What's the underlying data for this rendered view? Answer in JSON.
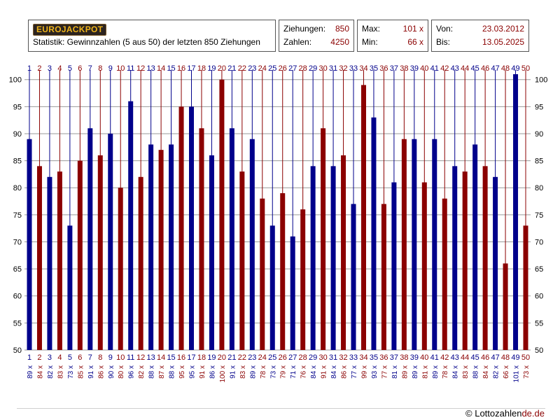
{
  "header": {
    "logo_text": "EUROJACKPOT",
    "subtitle": "Statistik: Gewinnzahlen (5 aus 50) der letzten 850 Ziehungen"
  },
  "stats": {
    "draws_label": "Ziehungen:",
    "draws_value": "850",
    "numbers_label": "Zahlen:",
    "numbers_value": "4250",
    "max_label": "Max:",
    "max_value": "101 x",
    "min_label": "Min:",
    "min_value": "66 x",
    "from_label": "Von:",
    "from_value": "23.03.2012",
    "to_label": "Bis:",
    "to_value": "13.05.2025"
  },
  "chart_data": {
    "type": "bar",
    "categories": [
      "1",
      "2",
      "3",
      "4",
      "5",
      "6",
      "7",
      "8",
      "9",
      "10",
      "11",
      "12",
      "13",
      "14",
      "15",
      "16",
      "17",
      "18",
      "19",
      "20",
      "21",
      "22",
      "23",
      "24",
      "25",
      "26",
      "27",
      "28",
      "29",
      "30",
      "31",
      "32",
      "33",
      "34",
      "35",
      "36",
      "37",
      "38",
      "39",
      "40",
      "41",
      "42",
      "43",
      "44",
      "45",
      "46",
      "47",
      "48",
      "49",
      "50"
    ],
    "values": [
      89,
      84,
      82,
      83,
      73,
      85,
      91,
      86,
      90,
      80,
      96,
      82,
      88,
      87,
      88,
      95,
      95,
      91,
      86,
      100,
      91,
      83,
      89,
      78,
      73,
      79,
      71,
      76,
      84,
      91,
      84,
      86,
      77,
      99,
      93,
      77,
      81,
      89,
      89,
      81,
      89,
      78,
      84,
      83,
      88,
      84,
      82,
      66,
      101,
      73
    ],
    "value_labels": [
      "89 x",
      "84 x",
      "82 x",
      "83 x",
      "73 x",
      "85 x",
      "91 x",
      "86 x",
      "90 x",
      "80 x",
      "96 x",
      "82 x",
      "88 x",
      "87 x",
      "88 x",
      "95 x",
      "95 x",
      "91 x",
      "86 x",
      "100 x",
      "91 x",
      "83 x",
      "89 x",
      "78 x",
      "73 x",
      "79 x",
      "71 x",
      "76 x",
      "84 x",
      "91 x",
      "84 x",
      "86 x",
      "77 x",
      "99 x",
      "93 x",
      "77 x",
      "81 x",
      "89 x",
      "89 x",
      "81 x",
      "89 x",
      "78 x",
      "84 x",
      "83 x",
      "88 x",
      "84 x",
      "82 x",
      "66 x",
      "101 x",
      "73 x"
    ],
    "ylim": [
      50,
      101
    ],
    "yticks": [
      "50",
      "55",
      "60",
      "65",
      "70",
      "75",
      "80",
      "85",
      "90",
      "95",
      "100"
    ],
    "grid": true,
    "colors": {
      "odd": "#00008b",
      "even": "#8b0000",
      "grid": "#9a9a9a"
    }
  },
  "footer": {
    "copyright_prefix": "© Lottozahlen",
    "copyright_suffix": "de.de"
  }
}
